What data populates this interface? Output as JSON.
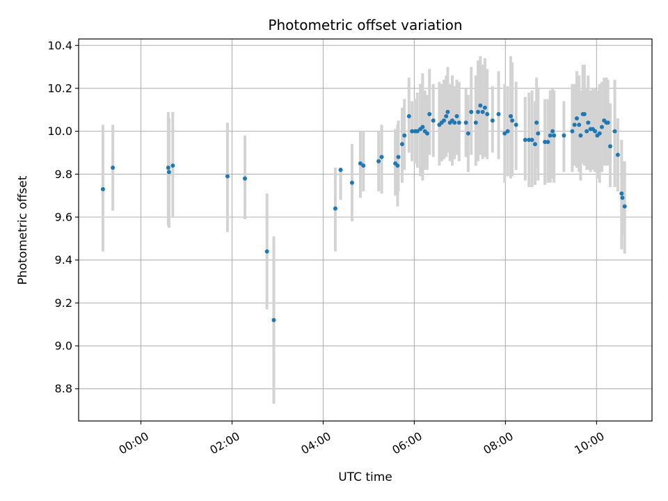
{
  "chart_data": {
    "type": "scatter",
    "title": "Photometric offset variation",
    "xlabel": "UTC time",
    "ylabel": "Photometric offset",
    "x_unit": "UTC hours (HH:MM)",
    "xlim": [
      "-01:22",
      "11:13"
    ],
    "ylim": [
      8.65,
      10.43
    ],
    "x_ticks": [
      "00:00",
      "02:00",
      "04:00",
      "06:00",
      "08:00",
      "10:00"
    ],
    "y_ticks": [
      "8.8",
      "9.0",
      "9.2",
      "9.4",
      "9.6",
      "9.8",
      "10.0",
      "10.2",
      "10.4"
    ],
    "grid": true,
    "point_color": "#1f77b4",
    "errorbar_color": "#d3d3d3",
    "points": [
      [
        "-00:50",
        9.73,
        9.44,
        10.03
      ],
      [
        "-00:37",
        9.83,
        9.63,
        10.03
      ],
      [
        "00:36",
        9.83,
        9.56,
        10.09
      ],
      [
        "00:37",
        9.81,
        9.55,
        10.06
      ],
      [
        "00:42",
        9.84,
        9.6,
        10.09
      ],
      [
        "01:54",
        9.79,
        9.53,
        10.04
      ],
      [
        "02:17",
        9.78,
        9.59,
        9.98
      ],
      [
        "02:46",
        9.44,
        9.17,
        9.71
      ],
      [
        "02:55",
        9.12,
        8.73,
        9.51
      ],
      [
        "04:16",
        9.64,
        9.44,
        9.83
      ],
      [
        "04:23",
        9.82,
        9.68,
        9.83
      ],
      [
        "04:38",
        9.76,
        9.58,
        9.94
      ],
      [
        "04:49",
        9.85,
        9.69,
        10.0
      ],
      [
        "04:53",
        9.84,
        9.72,
        10.0
      ],
      [
        "05:13",
        9.86,
        9.72,
        10.0
      ],
      [
        "05:17",
        9.88,
        9.71,
        10.03
      ],
      [
        "05:35",
        9.85,
        9.7,
        10.01
      ],
      [
        "05:38",
        9.84,
        9.65,
        10.03
      ],
      [
        "05:39",
        9.88,
        9.72,
        10.05
      ],
      [
        "05:44",
        9.94,
        9.76,
        10.11
      ],
      [
        "05:47",
        9.98,
        9.82,
        10.15
      ],
      [
        "05:53",
        10.07,
        9.9,
        10.25
      ],
      [
        "05:57",
        10.0,
        9.86,
        10.14
      ],
      [
        "06:01",
        10.0,
        9.85,
        10.15
      ],
      [
        "06:04",
        10.0,
        9.83,
        10.18
      ],
      [
        "06:08",
        10.01,
        9.79,
        10.22
      ],
      [
        "06:11",
        10.02,
        9.77,
        10.27
      ],
      [
        "06:14",
        10.0,
        9.82,
        10.19
      ],
      [
        "06:17",
        9.99,
        9.82,
        10.17
      ],
      [
        "06:20",
        10.08,
        9.89,
        10.29
      ],
      [
        "06:25",
        10.05,
        9.88,
        10.22
      ],
      [
        "06:33",
        10.03,
        9.84,
        10.23
      ],
      [
        "06:36",
        10.04,
        9.86,
        10.22
      ],
      [
        "06:39",
        10.05,
        9.87,
        10.24
      ],
      [
        "06:42",
        10.07,
        9.88,
        10.26
      ],
      [
        "06:44",
        10.09,
        9.9,
        10.3
      ],
      [
        "06:47",
        10.04,
        9.86,
        10.22
      ],
      [
        "06:50",
        10.05,
        9.84,
        10.26
      ],
      [
        "06:53",
        10.04,
        9.87,
        10.21
      ],
      [
        "06:56",
        10.07,
        9.89,
        10.24
      ],
      [
        "06:59",
        10.04,
        9.86,
        10.23
      ],
      [
        "07:08",
        10.04,
        9.88,
        10.2
      ],
      [
        "07:11",
        9.99,
        9.81,
        10.17
      ],
      [
        "07:15",
        10.09,
        9.89,
        10.3
      ],
      [
        "07:21",
        10.04,
        9.84,
        10.26
      ],
      [
        "07:24",
        10.09,
        9.86,
        10.33
      ],
      [
        "07:27",
        10.12,
        9.89,
        10.35
      ],
      [
        "07:30",
        10.09,
        9.87,
        10.31
      ],
      [
        "07:33",
        10.11,
        9.88,
        10.34
      ],
      [
        "07:36",
        10.08,
        9.87,
        10.29
      ],
      [
        "07:43",
        10.05,
        9.9,
        10.21
      ],
      [
        "07:51",
        10.08,
        9.87,
        10.28
      ],
      [
        "07:59",
        9.99,
        9.76,
        10.22
      ],
      [
        "08:03",
        10.0,
        9.79,
        10.21
      ],
      [
        "08:07",
        10.07,
        9.78,
        10.35
      ],
      [
        "08:09",
        10.05,
        9.79,
        10.32
      ],
      [
        "08:14",
        10.03,
        9.82,
        10.23
      ],
      [
        "08:26",
        9.96,
        9.77,
        10.16
      ],
      [
        "08:31",
        9.96,
        9.74,
        10.18
      ],
      [
        "08:35",
        9.96,
        9.74,
        10.19
      ],
      [
        "08:39",
        9.94,
        9.75,
        10.14
      ],
      [
        "08:41",
        10.04,
        9.83,
        10.25
      ],
      [
        "08:43",
        9.99,
        9.77,
        10.2
      ],
      [
        "08:52",
        9.95,
        9.75,
        10.15
      ],
      [
        "08:56",
        9.95,
        9.76,
        10.15
      ],
      [
        "08:59",
        9.98,
        9.76,
        10.19
      ],
      [
        "09:02",
        10.0,
        9.78,
        10.2
      ],
      [
        "09:04",
        9.98,
        9.76,
        10.19
      ],
      [
        "09:17",
        9.98,
        9.81,
        10.14
      ],
      [
        "09:28",
        10.0,
        9.81,
        10.22
      ],
      [
        "09:31",
        10.03,
        9.84,
        10.22
      ],
      [
        "09:34",
        10.06,
        9.83,
        10.28
      ],
      [
        "09:37",
        10.03,
        9.81,
        10.26
      ],
      [
        "09:39",
        9.98,
        9.77,
        10.19
      ],
      [
        "09:42",
        10.08,
        9.85,
        10.31
      ],
      [
        "09:44",
        10.08,
        9.84,
        10.31
      ],
      [
        "09:47",
        10.0,
        9.82,
        10.2
      ],
      [
        "09:49",
        10.04,
        9.82,
        10.26
      ],
      [
        "09:52",
        10.01,
        9.81,
        10.19
      ],
      [
        "09:55",
        10.01,
        9.82,
        10.2
      ],
      [
        "09:58",
        10.0,
        9.81,
        10.2
      ],
      [
        "10:01",
        9.98,
        9.78,
        10.19
      ],
      [
        "10:04",
        9.99,
        9.76,
        10.22
      ],
      [
        "10:07",
        10.02,
        9.81,
        10.23
      ],
      [
        "10:10",
        10.05,
        9.84,
        10.25
      ],
      [
        "10:13",
        10.04,
        9.84,
        10.25
      ],
      [
        "10:15",
        10.04,
        9.84,
        10.24
      ],
      [
        "10:18",
        9.93,
        9.74,
        10.13
      ],
      [
        "10:24",
        10.0,
        9.74,
        10.24
      ],
      [
        "10:28",
        9.89,
        9.72,
        10.06
      ],
      [
        "10:33",
        9.71,
        9.45,
        9.96
      ],
      [
        "10:34",
        9.69,
        9.52,
        9.86
      ],
      [
        "10:37",
        9.65,
        9.43,
        9.86
      ]
    ]
  }
}
